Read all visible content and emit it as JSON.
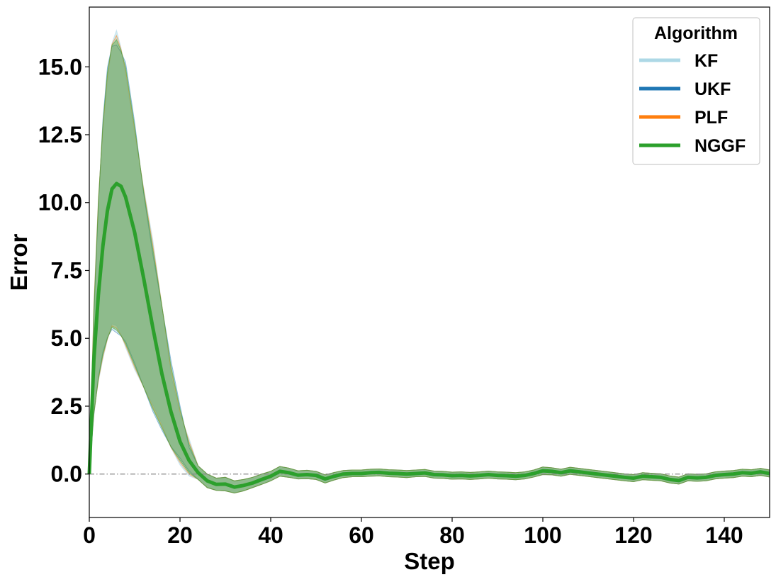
{
  "chart_data": {
    "type": "line",
    "title": "",
    "xlabel": "Step",
    "ylabel": "Error",
    "xlim": [
      0,
      150
    ],
    "ylim": [
      -1.6,
      17.2
    ],
    "xticks": [
      0,
      20,
      40,
      60,
      80,
      100,
      120,
      140
    ],
    "xtick_labels": [
      "0",
      "20",
      "40",
      "60",
      "80",
      "100",
      "120",
      "140"
    ],
    "yticks": [
      0.0,
      2.5,
      5.0,
      7.5,
      10.0,
      12.5,
      15.0
    ],
    "ytick_labels": [
      "0.0",
      "2.5",
      "5.0",
      "7.5",
      "10.0",
      "12.5",
      "15.0"
    ],
    "grid": false,
    "reference_line": {
      "y": 0.0,
      "style": "dash-dot",
      "color": "#888888"
    },
    "legend": {
      "title": "Algorithm",
      "placement": "top-right",
      "entries": [
        {
          "name": "KF",
          "color": "#add8e6"
        },
        {
          "name": "UKF",
          "color": "#1f77b4"
        },
        {
          "name": "PLF",
          "color": "#ff7f0e"
        },
        {
          "name": "NGGF",
          "color": "#2ca02c"
        }
      ]
    },
    "x": [
      0,
      1,
      2,
      3,
      4,
      5,
      6,
      7,
      8,
      10,
      12,
      14,
      16,
      18,
      20,
      22,
      24,
      26,
      28,
      30,
      32,
      34,
      36,
      38,
      40,
      42,
      44,
      46,
      48,
      50,
      52,
      54,
      56,
      58,
      60,
      62,
      64,
      66,
      68,
      70,
      72,
      74,
      76,
      78,
      80,
      82,
      84,
      86,
      88,
      90,
      92,
      94,
      96,
      98,
      100,
      102,
      104,
      106,
      108,
      110,
      112,
      114,
      116,
      118,
      120,
      122,
      124,
      126,
      128,
      130,
      132,
      134,
      136,
      138,
      140,
      142,
      144,
      146,
      148,
      150
    ],
    "series": [
      {
        "name": "NGGF",
        "color": "#2ca02c",
        "mean": [
          0.0,
          4.2,
          6.6,
          8.4,
          9.7,
          10.5,
          10.7,
          10.6,
          10.2,
          8.9,
          7.2,
          5.4,
          3.7,
          2.3,
          1.2,
          0.5,
          0.05,
          -0.25,
          -0.38,
          -0.37,
          -0.48,
          -0.42,
          -0.33,
          -0.2,
          -0.08,
          0.1,
          0.05,
          -0.04,
          -0.02,
          -0.05,
          -0.18,
          -0.08,
          0.0,
          0.02,
          0.02,
          0.05,
          0.06,
          0.03,
          0.02,
          0.0,
          0.02,
          0.04,
          -0.02,
          -0.03,
          -0.06,
          -0.05,
          -0.07,
          -0.05,
          -0.02,
          -0.05,
          -0.06,
          -0.08,
          -0.05,
          0.02,
          0.12,
          0.1,
          0.05,
          0.12,
          0.08,
          0.04,
          0.0,
          -0.04,
          -0.08,
          -0.12,
          -0.15,
          -0.08,
          -0.1,
          -0.12,
          -0.2,
          -0.24,
          -0.12,
          -0.14,
          -0.12,
          -0.05,
          -0.02,
          0.0,
          0.05,
          0.03,
          0.08,
          0.02
        ],
        "lower": [
          0.0,
          2.2,
          3.5,
          4.4,
          5.0,
          5.4,
          5.3,
          5.1,
          4.8,
          4.0,
          3.2,
          2.4,
          1.7,
          1.0,
          0.5,
          0.05,
          -0.2,
          -0.5,
          -0.6,
          -0.62,
          -0.7,
          -0.62,
          -0.5,
          -0.38,
          -0.25,
          -0.08,
          -0.12,
          -0.18,
          -0.17,
          -0.2,
          -0.33,
          -0.22,
          -0.13,
          -0.1,
          -0.1,
          -0.08,
          -0.07,
          -0.1,
          -0.11,
          -0.13,
          -0.1,
          -0.09,
          -0.15,
          -0.16,
          -0.19,
          -0.18,
          -0.2,
          -0.18,
          -0.15,
          -0.18,
          -0.19,
          -0.21,
          -0.18,
          -0.11,
          -0.02,
          -0.03,
          -0.08,
          -0.01,
          -0.05,
          -0.09,
          -0.13,
          -0.17,
          -0.21,
          -0.25,
          -0.28,
          -0.21,
          -0.23,
          -0.25,
          -0.33,
          -0.37,
          -0.25,
          -0.27,
          -0.25,
          -0.18,
          -0.15,
          -0.13,
          -0.08,
          -0.1,
          -0.05,
          -0.11
        ],
        "upper": [
          0.0,
          6.0,
          10.0,
          12.9,
          14.8,
          15.8,
          16.0,
          15.6,
          15.0,
          12.8,
          10.4,
          8.3,
          6.2,
          4.0,
          2.4,
          1.1,
          0.3,
          0.0,
          -0.15,
          -0.12,
          -0.25,
          -0.2,
          -0.12,
          0.0,
          0.1,
          0.28,
          0.22,
          0.12,
          0.14,
          0.1,
          -0.03,
          0.06,
          0.13,
          0.15,
          0.15,
          0.18,
          0.19,
          0.16,
          0.15,
          0.13,
          0.15,
          0.17,
          0.11,
          0.1,
          0.07,
          0.08,
          0.06,
          0.08,
          0.11,
          0.08,
          0.07,
          0.05,
          0.08,
          0.15,
          0.26,
          0.23,
          0.18,
          0.25,
          0.21,
          0.17,
          0.13,
          0.09,
          0.05,
          0.01,
          -0.02,
          0.05,
          0.03,
          0.01,
          -0.07,
          -0.11,
          0.01,
          -0.01,
          0.01,
          0.08,
          0.11,
          0.13,
          0.18,
          0.16,
          0.21,
          0.15
        ]
      }
    ]
  }
}
